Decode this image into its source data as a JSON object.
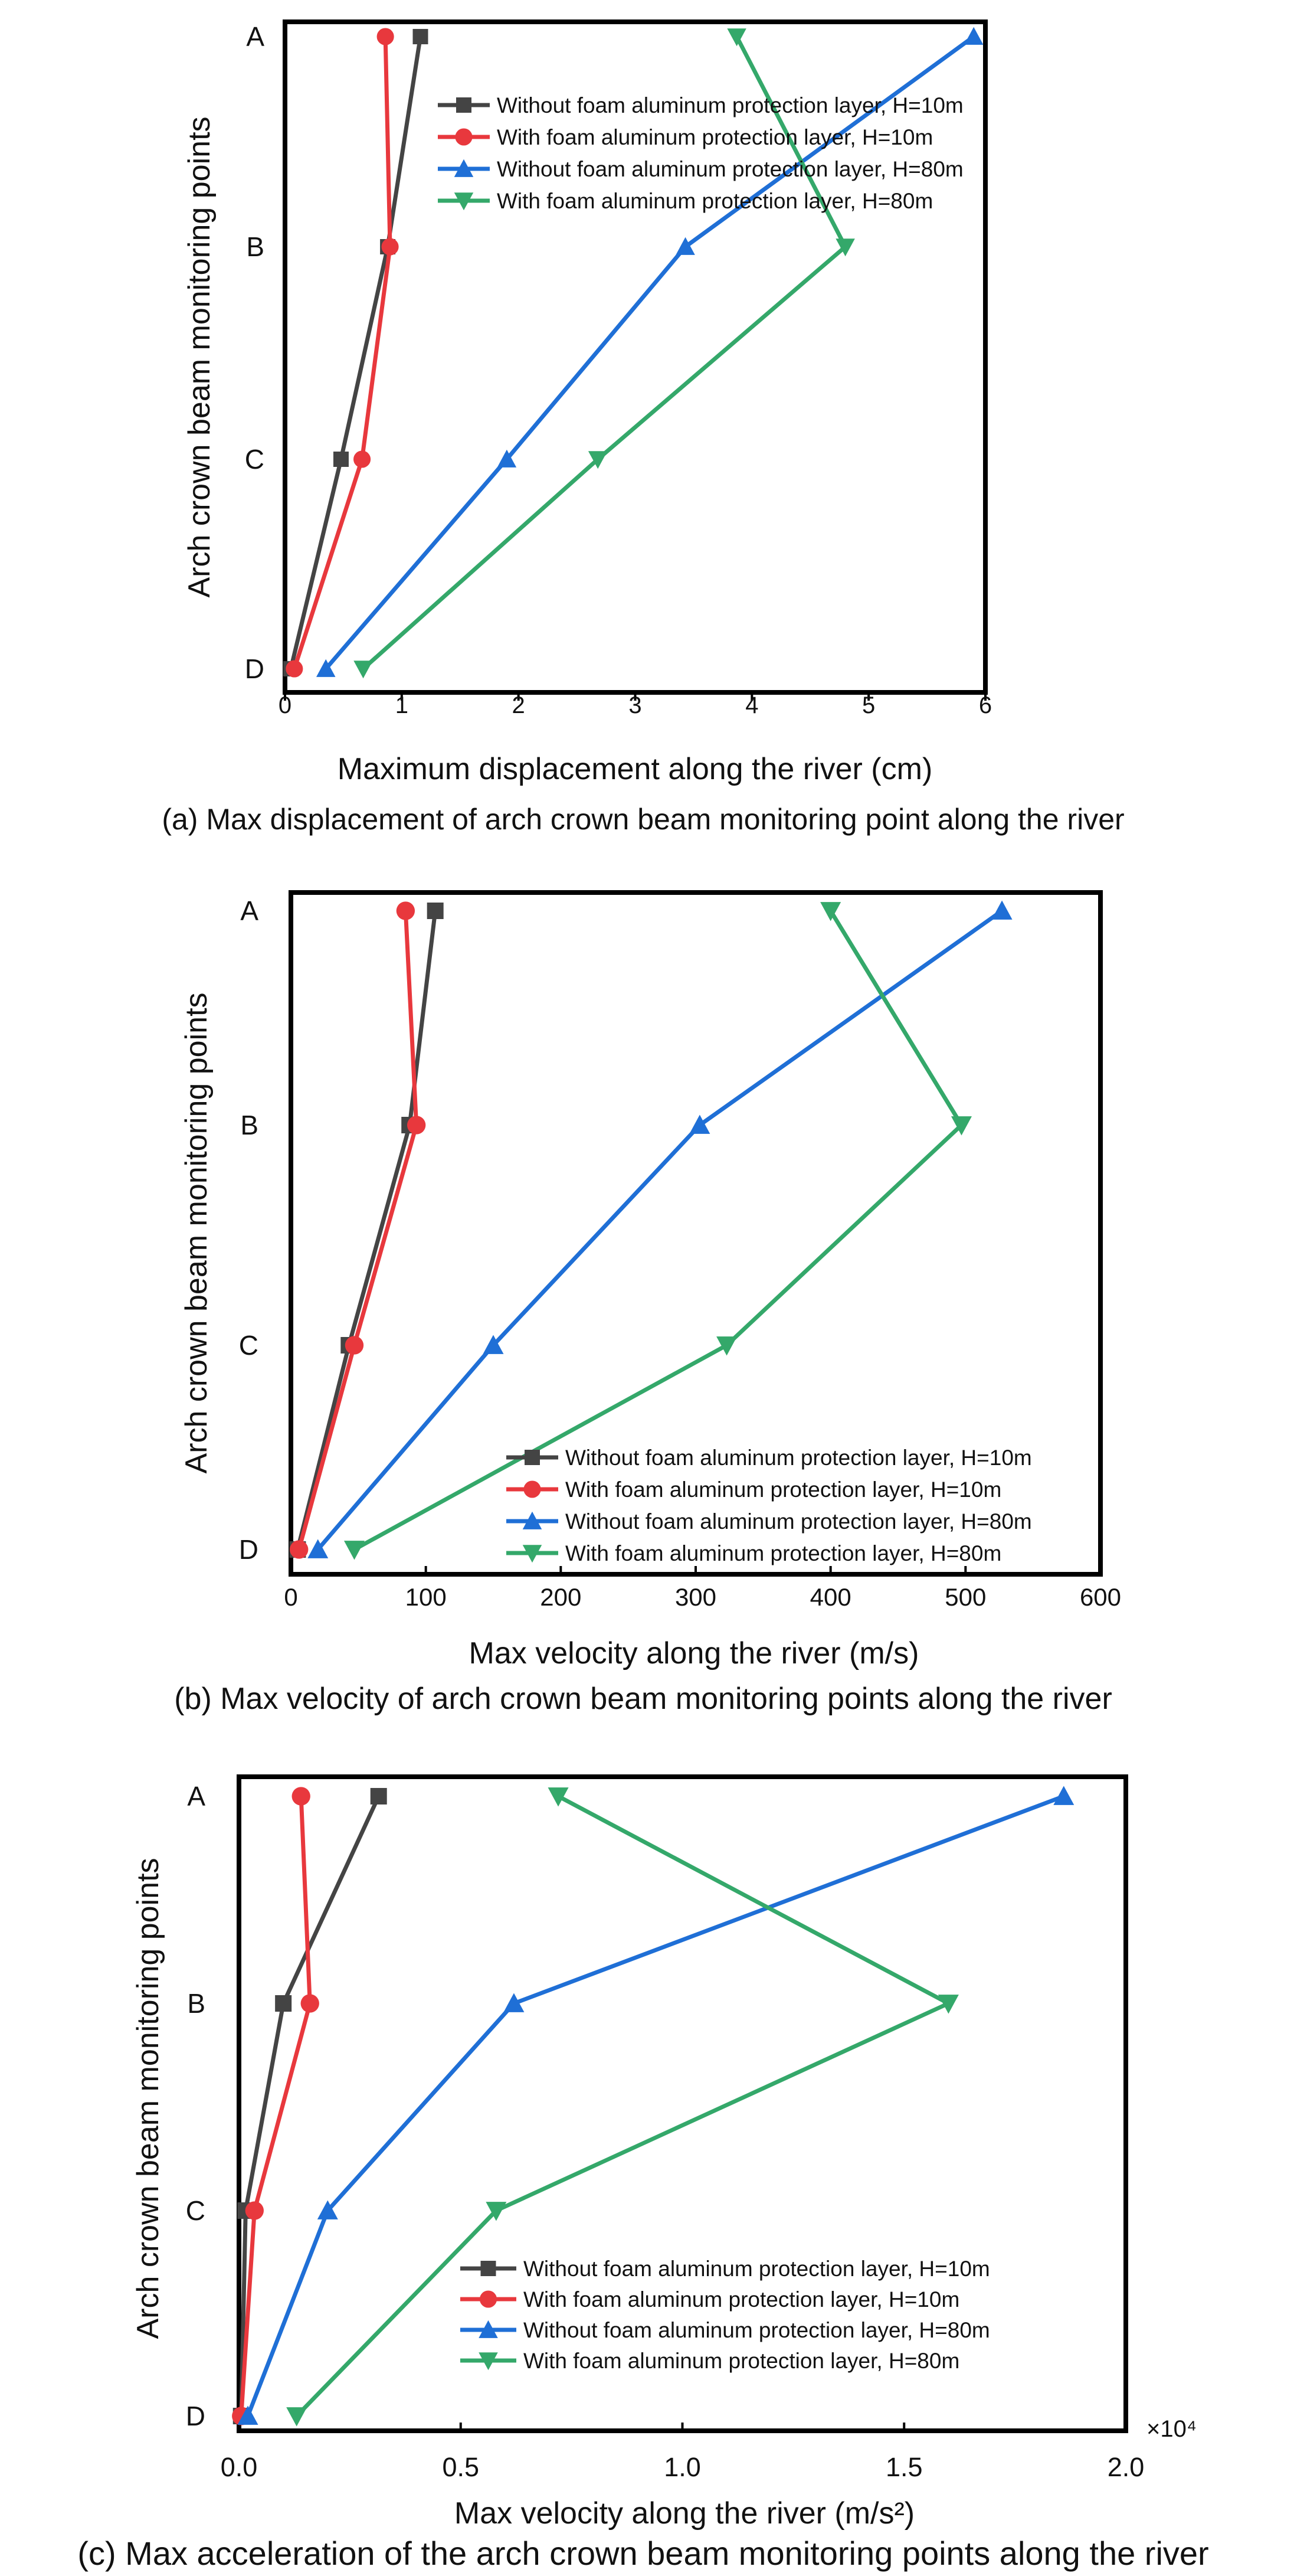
{
  "chart_data": [
    {
      "type": "line",
      "panel": "a",
      "title": "",
      "caption": "(a) Max displacement of arch crown beam monitoring point along the river",
      "xlabel": "Maximum displacement along the river (cm)",
      "ylabel": "Arch crown beam monitoring points",
      "xlim": [
        0,
        6
      ],
      "xticks": [
        "0",
        "1",
        "2",
        "3",
        "4",
        "5",
        "6"
      ],
      "categories": [
        "A",
        "B",
        "C",
        "D"
      ],
      "legend_position": "top-right",
      "multiplier": "",
      "series": [
        {
          "name": "Without foam aluminum protection layer, H=10m",
          "color": "#444444",
          "marker": "square",
          "values": [
            1.16,
            0.88,
            0.48,
            0.05
          ]
        },
        {
          "name": "With foam aluminum protection layer, H=10m",
          "color": "#e8383d",
          "marker": "circle",
          "values": [
            0.86,
            0.9,
            0.66,
            0.08
          ]
        },
        {
          "name": "Without foam aluminum protection layer, H=80m",
          "color": "#1f6fd6",
          "marker": "triangle-up",
          "values": [
            5.9,
            3.43,
            1.9,
            0.35
          ]
        },
        {
          "name": "With foam aluminum protection layer, H=80m",
          "color": "#34a86a",
          "marker": "triangle-down",
          "values": [
            3.87,
            4.8,
            2.68,
            0.67
          ]
        }
      ]
    },
    {
      "type": "line",
      "panel": "b",
      "title": "",
      "caption": "(b) Max velocity of arch crown beam monitoring points along the river",
      "xlabel": "Max velocity along the river (m/s)",
      "ylabel": "Arch crown beam monitoring points",
      "xlim": [
        0,
        600
      ],
      "xticks": [
        "0",
        "100",
        "200",
        "300",
        "400",
        "500",
        "600"
      ],
      "categories": [
        "A",
        "B",
        "C",
        "D"
      ],
      "legend_position": "bottom-right",
      "multiplier": "",
      "series": [
        {
          "name": "Without foam aluminum protection layer, H=10m",
          "color": "#444444",
          "marker": "square",
          "values": [
            107,
            88,
            43,
            5
          ]
        },
        {
          "name": "With foam aluminum protection layer, H=10m",
          "color": "#e8383d",
          "marker": "circle",
          "values": [
            85,
            93,
            47,
            6
          ]
        },
        {
          "name": "Without foam aluminum protection layer, H=80m",
          "color": "#1f6fd6",
          "marker": "triangle-up",
          "values": [
            527,
            303,
            150,
            20
          ]
        },
        {
          "name": "With foam aluminum protection layer, H=80m",
          "color": "#34a86a",
          "marker": "triangle-down",
          "values": [
            400,
            497,
            323,
            47
          ]
        }
      ]
    },
    {
      "type": "line",
      "panel": "c",
      "title": "",
      "caption": "(c) Max acceleration of the arch crown beam monitoring points along the river",
      "xlabel": "Max velocity along the river (m/s²)",
      "ylabel": "Arch crown beam monitoring points",
      "xlim": [
        0,
        2.0
      ],
      "xticks": [
        "0.0",
        "0.5",
        "1.0",
        "1.5",
        "2.0"
      ],
      "categories": [
        "A",
        "B",
        "C",
        "D"
      ],
      "legend_position": "bottom-right",
      "multiplier": "×10⁴",
      "series": [
        {
          "name": "Without foam aluminum protection layer, H=10m",
          "color": "#444444",
          "marker": "square",
          "values": [
            0.315,
            0.1,
            0.015,
            0.005
          ]
        },
        {
          "name": "With foam aluminum protection layer, H=10m",
          "color": "#e8383d",
          "marker": "circle",
          "values": [
            0.14,
            0.16,
            0.035,
            0.005
          ]
        },
        {
          "name": "Without foam aluminum protection layer, H=80m",
          "color": "#1f6fd6",
          "marker": "triangle-up",
          "values": [
            1.86,
            0.62,
            0.2,
            0.02
          ]
        },
        {
          "name": "With foam aluminum protection layer, H=80m",
          "color": "#34a86a",
          "marker": "triangle-down",
          "values": [
            0.72,
            1.6,
            0.58,
            0.13
          ]
        }
      ]
    }
  ]
}
